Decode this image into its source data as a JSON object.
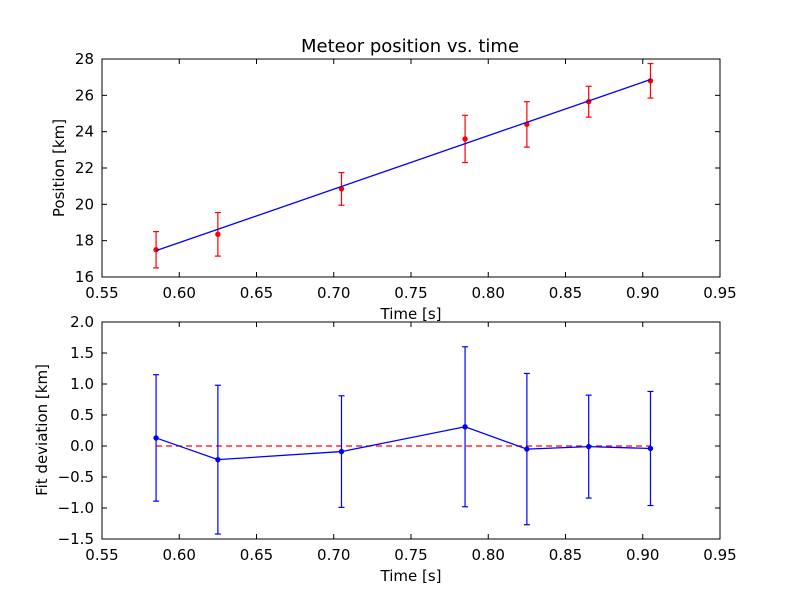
{
  "chart_data": [
    {
      "type": "line",
      "title": "Meteor position vs. time",
      "xlabel": "Time [s]",
      "ylabel": "Position [km]",
      "xlim": [
        0.55,
        0.95
      ],
      "ylim": [
        16,
        28
      ],
      "xticks": [
        "0.55",
        "0.60",
        "0.65",
        "0.70",
        "0.75",
        "0.80",
        "0.85",
        "0.90",
        "0.95"
      ],
      "yticks": [
        "16",
        "18",
        "20",
        "22",
        "24",
        "26",
        "28"
      ],
      "grid": false,
      "series": [
        {
          "kind": "errorbar-points",
          "color": "#ff0000",
          "x": [
            0.585,
            0.625,
            0.705,
            0.785,
            0.825,
            0.865,
            0.905
          ],
          "y": [
            17.5,
            18.35,
            20.85,
            23.6,
            24.4,
            25.65,
            26.8
          ],
          "yerr": [
            1.0,
            1.2,
            0.9,
            1.3,
            1.25,
            0.85,
            0.95
          ]
        },
        {
          "kind": "fit-line",
          "color": "#0000ff",
          "x": [
            0.585,
            0.905
          ],
          "y": [
            17.45,
            26.87
          ]
        }
      ]
    },
    {
      "type": "line",
      "title": "",
      "xlabel": "Time [s]",
      "ylabel": "Fit deviation [km]",
      "xlim": [
        0.55,
        0.95
      ],
      "ylim": [
        -1.5,
        2.0
      ],
      "xticks": [
        "0.55",
        "0.60",
        "0.65",
        "0.70",
        "0.75",
        "0.80",
        "0.85",
        "0.90",
        "0.95"
      ],
      "yticks": [
        "−1.5",
        "−1.0",
        "−0.5",
        "0.0",
        "0.5",
        "1.0",
        "1.5",
        "2.0"
      ],
      "grid": false,
      "reference_line": {
        "y": 0.0,
        "color": "#ff0000",
        "style": "dashed",
        "x": [
          0.585,
          0.905
        ]
      },
      "series": [
        {
          "kind": "errorbar-line",
          "color": "#0000ff",
          "x": [
            0.585,
            0.625,
            0.705,
            0.785,
            0.825,
            0.865,
            0.905
          ],
          "y": [
            0.13,
            -0.22,
            -0.09,
            0.31,
            -0.05,
            -0.01,
            -0.04
          ],
          "yerr": [
            1.02,
            1.2,
            0.9,
            1.29,
            1.22,
            0.83,
            0.92
          ]
        }
      ]
    }
  ]
}
